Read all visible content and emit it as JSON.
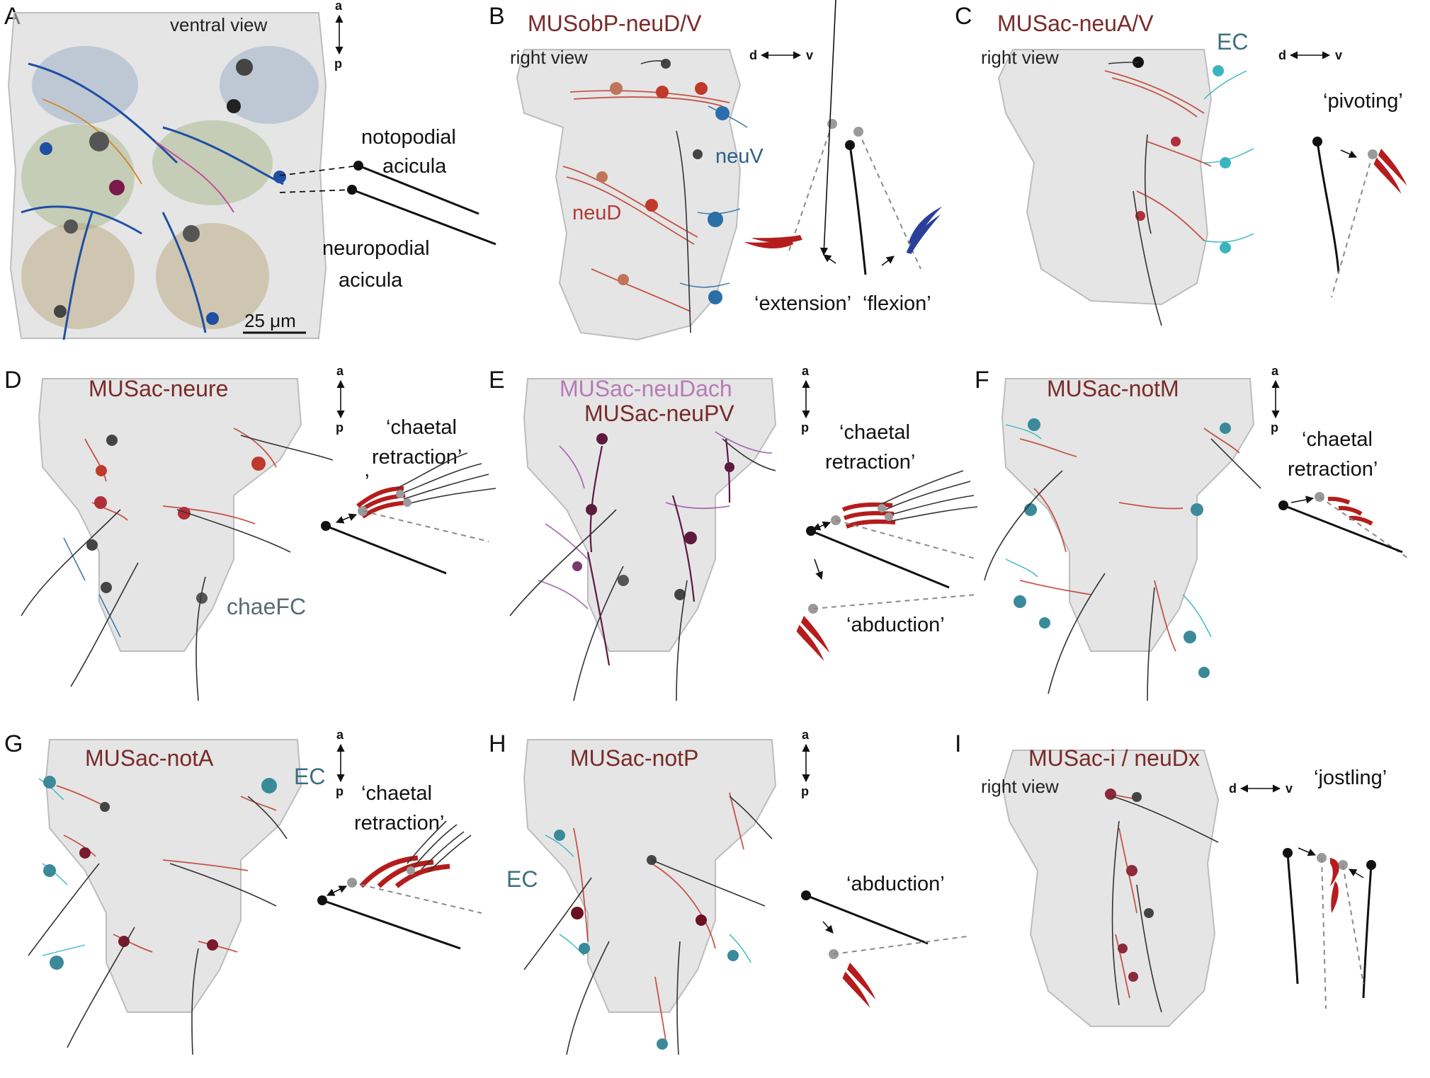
{
  "colors": {
    "muscle_red": "#b51d1d",
    "flexion_blue": "#2a3f9a",
    "muscle_title": "#7a2a2a",
    "neuDach_pink": "#b77ab8",
    "ec_teal": "#3d6f80",
    "neuV_blue": "#2c5f8a",
    "body_gray": "#cfcfcf"
  },
  "panels": {
    "A": {
      "label": "A",
      "view": "ventral view",
      "axis_a": "a",
      "axis_p": "p",
      "noto_line1": "notopodial",
      "noto_line2": "acicula",
      "neuro_line1": "neuropodial",
      "neuro_line2": "acicula",
      "scale": "25 μm"
    },
    "B": {
      "label": "B",
      "title": "MUSobP-neuD/V",
      "view": "right view",
      "axis_d": "d",
      "axis_v": "v",
      "neuV": "neuV",
      "neuD": "neuD",
      "motion_left": "‘extension’",
      "motion_right": "‘flexion’"
    },
    "C": {
      "label": "C",
      "title": "MUSac-neuA/V",
      "view": "right view",
      "ec": "EC",
      "axis_d": "d",
      "axis_v": "v",
      "motion": "‘pivoting’"
    },
    "D": {
      "label": "D",
      "title": "MUSac-neure",
      "axis_a": "a",
      "axis_p": "p",
      "motion_line1": "‘chaetal",
      "motion_line2": "retraction’",
      "stray": "’",
      "chaeFC": "chaeFC"
    },
    "E": {
      "label": "E",
      "title1": "MUSac-neuDach",
      "title2": "MUSac-neuPV",
      "axis_a": "a",
      "axis_p": "p",
      "motion_line1": "‘chaetal",
      "motion_line2": "retraction’",
      "motion2": "‘abduction’"
    },
    "F": {
      "label": "F",
      "title": "MUSac-notM",
      "axis_a": "a",
      "axis_p": "p",
      "motion_line1": "‘chaetal",
      "motion_line2": "retraction’"
    },
    "G": {
      "label": "G",
      "title": "MUSac-notA",
      "ec": "EC",
      "axis_a": "a",
      "axis_p": "p",
      "motion_line1": "‘chaetal",
      "motion_line2": "retraction’"
    },
    "H": {
      "label": "H",
      "title": "MUSac-notP",
      "ec": "EC",
      "axis_a": "a",
      "axis_p": "p",
      "motion": "‘abduction’"
    },
    "I": {
      "label": "I",
      "title": "MUSac-i / neuDx",
      "view": "right view",
      "axis_d": "d",
      "axis_v": "v",
      "motion": "‘jostling’"
    }
  }
}
